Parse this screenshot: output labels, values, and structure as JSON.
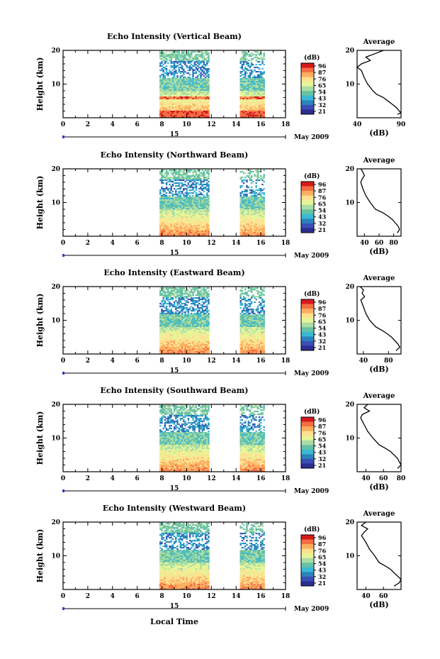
{
  "figure": {
    "xlabel": "Local Time",
    "date_label": "May 2009",
    "day_label": "15",
    "ylabel": "Height (km)",
    "colorbar_unit": "(dB)",
    "colorbar_ticks": [
      "96",
      "87",
      "76",
      "65",
      "54",
      "43",
      "32",
      "21"
    ],
    "colorbar_colors": [
      "#d7191c",
      "#f46d43",
      "#fdae61",
      "#fee090",
      "#e6f598",
      "#abdda4",
      "#66c2a5",
      "#3cb8d4",
      "#2b83ba",
      "#3a4fb5",
      "#2c2f8f"
    ],
    "x_ticks": [
      "0",
      "2",
      "4",
      "6",
      "8",
      "10",
      "12",
      "14",
      "16",
      "18"
    ],
    "y_ticks": [
      "10",
      "20"
    ],
    "avg_title": "Average",
    "avg_xlabel": "(dB)"
  },
  "chart_data": [
    {
      "type": "heatmap",
      "title": "Echo Intensity (Vertical Beam)",
      "xlabel": "Local Time",
      "ylabel": "Height (km)",
      "xlim": [
        0,
        18
      ],
      "ylim": [
        0,
        20
      ],
      "data_windows_hours": [
        [
          7.8,
          11.8
        ],
        [
          14.3,
          16.3
        ]
      ],
      "colorbar": {
        "unit": "dB",
        "ticks": [
          21,
          32,
          43,
          54,
          65,
          76,
          87,
          96
        ]
      },
      "average_profile": {
        "title": "Average",
        "xlabel": "(dB)",
        "xlim": [
          40,
          90
        ],
        "xticks": [
          "40",
          "90"
        ],
        "yticks": [
          "10",
          "20"
        ],
        "points": [
          [
            70,
            20
          ],
          [
            60,
            19
          ],
          [
            50,
            18
          ],
          [
            55,
            17
          ],
          [
            45,
            16
          ],
          [
            40,
            15
          ],
          [
            45,
            14
          ],
          [
            48,
            12
          ],
          [
            52,
            10
          ],
          [
            58,
            8
          ],
          [
            62,
            7
          ],
          [
            70,
            6
          ],
          [
            75,
            5
          ],
          [
            80,
            4
          ],
          [
            85,
            3
          ],
          [
            88,
            2
          ],
          [
            90,
            1.5
          ],
          [
            86,
            1
          ]
        ]
      }
    },
    {
      "type": "heatmap",
      "title": "Echo Intensity (Northward Beam)",
      "xlabel": "Local Time",
      "ylabel": "Height (km)",
      "xlim": [
        0,
        18
      ],
      "ylim": [
        0,
        20
      ],
      "data_windows_hours": [
        [
          7.8,
          11.8
        ],
        [
          14.3,
          16.3
        ]
      ],
      "colorbar": {
        "unit": "dB",
        "ticks": [
          21,
          32,
          43,
          54,
          65,
          76,
          87,
          96
        ]
      },
      "average_profile": {
        "title": "Average",
        "xlabel": "(dB)",
        "xlim": [
          30,
          90
        ],
        "xticks": [
          "40",
          "60",
          "80"
        ],
        "yticks": [
          "10",
          "20"
        ],
        "points": [
          [
            35,
            20
          ],
          [
            38,
            19
          ],
          [
            40,
            18
          ],
          [
            37,
            17
          ],
          [
            35,
            16
          ],
          [
            38,
            14
          ],
          [
            42,
            12
          ],
          [
            48,
            10
          ],
          [
            55,
            8
          ],
          [
            65,
            7
          ],
          [
            72,
            6
          ],
          [
            78,
            5
          ],
          [
            82,
            4
          ],
          [
            86,
            3
          ],
          [
            88,
            2
          ],
          [
            85,
            1
          ]
        ]
      }
    },
    {
      "type": "heatmap",
      "title": "Echo Intensity (Eastward Beam)",
      "xlabel": "Local Time",
      "ylabel": "Height (km)",
      "xlim": [
        0,
        18
      ],
      "ylim": [
        0,
        20
      ],
      "data_windows_hours": [
        [
          7.8,
          11.8
        ],
        [
          14.3,
          16.3
        ]
      ],
      "colorbar": {
        "unit": "dB",
        "ticks": [
          21,
          32,
          43,
          54,
          65,
          76,
          87,
          96
        ]
      },
      "average_profile": {
        "title": "Average",
        "xlabel": "(dB)",
        "xlim": [
          30,
          100
        ],
        "xticks": [
          "40",
          "80"
        ],
        "yticks": [
          "10",
          "20"
        ],
        "points": [
          [
            35,
            20
          ],
          [
            40,
            19
          ],
          [
            38,
            18
          ],
          [
            42,
            17
          ],
          [
            36,
            16
          ],
          [
            40,
            14
          ],
          [
            44,
            12
          ],
          [
            50,
            10
          ],
          [
            60,
            8
          ],
          [
            70,
            7
          ],
          [
            78,
            6
          ],
          [
            85,
            5
          ],
          [
            90,
            4
          ],
          [
            95,
            3
          ],
          [
            98,
            2
          ],
          [
            92,
            1
          ]
        ]
      }
    },
    {
      "type": "heatmap",
      "title": "Echo Intensity (Southward Beam)",
      "xlabel": "Local Time",
      "ylabel": "Height (km)",
      "xlim": [
        0,
        18
      ],
      "ylim": [
        0,
        20
      ],
      "data_windows_hours": [
        [
          7.8,
          11.8
        ],
        [
          14.3,
          16.3
        ]
      ],
      "colorbar": {
        "unit": "dB",
        "ticks": [
          21,
          32,
          43,
          54,
          65,
          76,
          87,
          96
        ]
      },
      "average_profile": {
        "title": "Average",
        "xlabel": "(dB)",
        "xlim": [
          30,
          80
        ],
        "xticks": [
          "40",
          "60",
          "80"
        ],
        "yticks": [
          "10",
          "20"
        ],
        "points": [
          [
            42,
            20
          ],
          [
            38,
            19
          ],
          [
            44,
            18
          ],
          [
            36,
            17
          ],
          [
            34,
            16
          ],
          [
            38,
            14
          ],
          [
            42,
            12
          ],
          [
            48,
            10
          ],
          [
            55,
            8
          ],
          [
            62,
            7
          ],
          [
            68,
            6
          ],
          [
            72,
            5
          ],
          [
            76,
            4
          ],
          [
            78,
            3
          ],
          [
            80,
            2
          ],
          [
            76,
            1
          ]
        ]
      }
    },
    {
      "type": "heatmap",
      "title": "Echo Intensity (Westward Beam)",
      "xlabel": "Local Time",
      "ylabel": "Height (km)",
      "xlim": [
        0,
        18
      ],
      "ylim": [
        0,
        20
      ],
      "data_windows_hours": [
        [
          7.8,
          11.8
        ],
        [
          14.3,
          16.3
        ]
      ],
      "colorbar": {
        "unit": "dB",
        "ticks": [
          21,
          32,
          43,
          54,
          65,
          76,
          87,
          96
        ]
      },
      "average_profile": {
        "title": "Average",
        "xlabel": "(dB)",
        "xlim": [
          30,
          80
        ],
        "xticks": [
          "40",
          "60"
        ],
        "yticks": [
          "10",
          "20"
        ],
        "points": [
          [
            40,
            20
          ],
          [
            35,
            19
          ],
          [
            42,
            18
          ],
          [
            38,
            17
          ],
          [
            35,
            16
          ],
          [
            40,
            14
          ],
          [
            44,
            12
          ],
          [
            50,
            10
          ],
          [
            55,
            8
          ],
          [
            62,
            7
          ],
          [
            68,
            6
          ],
          [
            72,
            5
          ],
          [
            76,
            4
          ],
          [
            80,
            3
          ],
          [
            78,
            2
          ],
          [
            72,
            1
          ]
        ]
      }
    }
  ]
}
